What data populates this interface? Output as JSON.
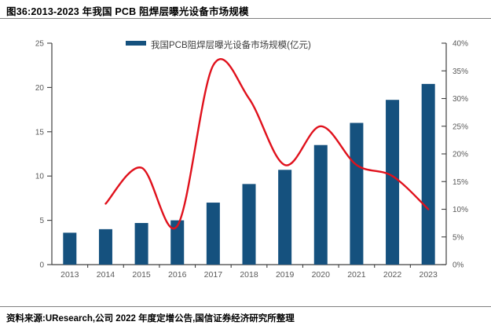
{
  "figure": {
    "title": "图36:2013-2023 年我国 PCB 阻焊层曝光设备市场规模"
  },
  "source_note": "资料来源:UResearch,公司 2022 年度定增公告,国信证券经济研究所整理",
  "colors": {
    "bar": "#15517E",
    "line": "#E0111C",
    "axis": "#404040",
    "tick_label": "#595959",
    "legend_text": "#3D3D3D",
    "divider": "#7F7F7F"
  },
  "chart_data": {
    "type": "bar",
    "subtype": "combo-bar-line",
    "categories": [
      "2013",
      "2014",
      "2015",
      "2016",
      "2017",
      "2018",
      "2019",
      "2020",
      "2021",
      "2022",
      "2023"
    ],
    "series": [
      {
        "name": "我国PCB阻焊层曝光设备市场规模(亿元)",
        "type": "bar",
        "axis": "left",
        "values": [
          3.6,
          4.0,
          4.7,
          5.0,
          7.0,
          9.1,
          10.7,
          13.5,
          16.0,
          18.6,
          20.4
        ]
      },
      {
        "name": "",
        "type": "line",
        "axis": "right",
        "values_percent": [
          null,
          11,
          17.5,
          7,
          36,
          30,
          18,
          25,
          18,
          16,
          10
        ]
      }
    ],
    "left_axis": {
      "min": 0,
      "max": 25,
      "step": 5,
      "ticks": [
        "0",
        "5",
        "10",
        "15",
        "20",
        "25"
      ]
    },
    "right_axis": {
      "min": 0,
      "max": 40,
      "step": 5,
      "ticks": [
        "0%",
        "5%",
        "10%",
        "15%",
        "20%",
        "25%",
        "30%",
        "35%",
        "40%"
      ]
    },
    "legend": {
      "label": "我国PCB阻焊层曝光设备市场规模(亿元)",
      "position": "top-center",
      "swatch": "bar"
    },
    "grid": false,
    "smooth_line": true
  }
}
